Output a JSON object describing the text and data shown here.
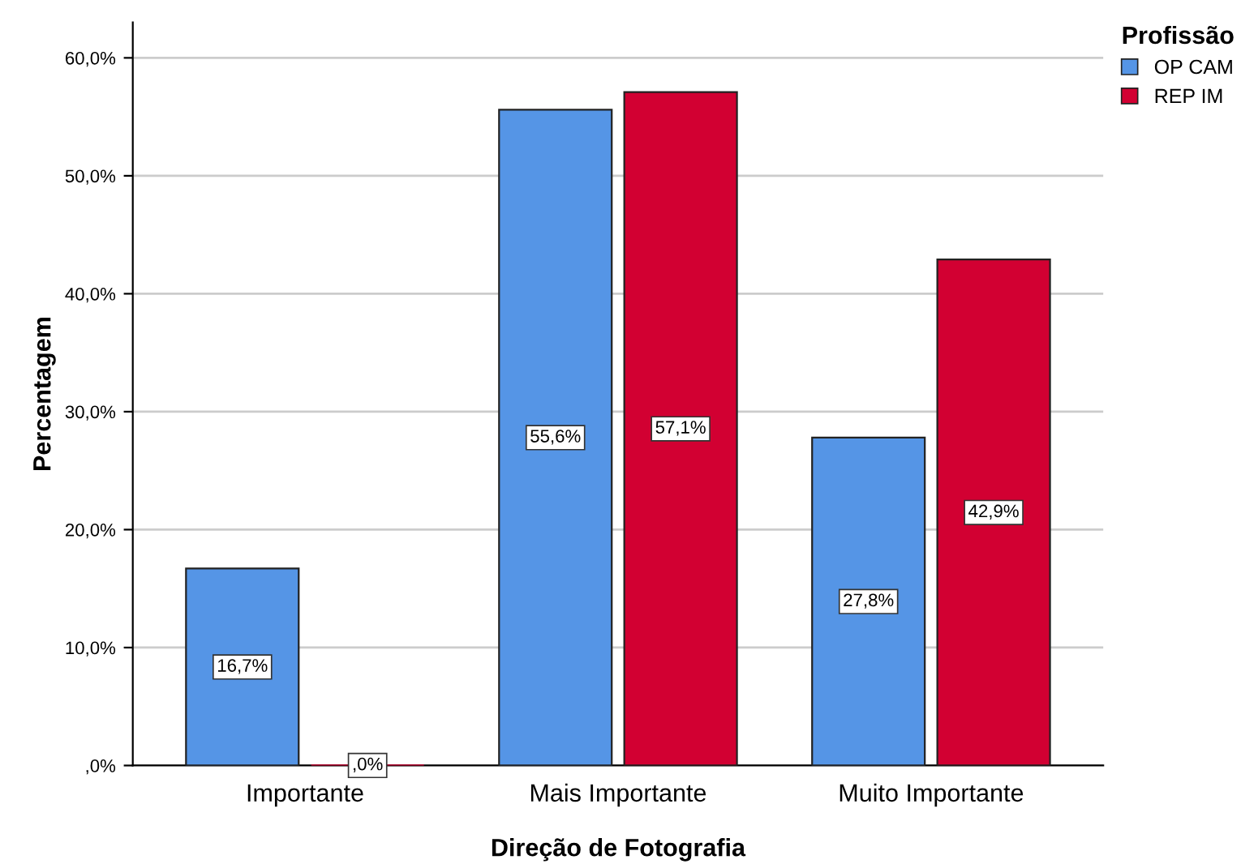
{
  "chart_data": {
    "type": "bar",
    "xlabel": "Direção de Fotografia",
    "ylabel": "Percentagem",
    "legend_title": "Profissão",
    "legend": "top right",
    "grid": "y",
    "categories": [
      "Importante",
      "Mais Importante",
      "Muito Importante"
    ],
    "series": [
      {
        "name": "OP CAM",
        "color": "#5595e6",
        "values": [
          16.7,
          55.6,
          27.8
        ],
        "value_labels": [
          "16,7%",
          "55,6%",
          "27,8%"
        ]
      },
      {
        "name": "REP IM",
        "color": "#d20032",
        "values": [
          0,
          57.1,
          42.9
        ],
        "value_labels": [
          ",0%",
          "57,1%",
          "42,9%"
        ]
      }
    ],
    "ylim": [
      0,
      63
    ],
    "yticks": [
      {
        "value": 0,
        "label": ",0%"
      },
      {
        "value": 10,
        "label": "10,0%"
      },
      {
        "value": 20,
        "label": "20,0%"
      },
      {
        "value": 30,
        "label": "30,0%"
      },
      {
        "value": 40,
        "label": "40,0%"
      },
      {
        "value": 50,
        "label": "50,0%"
      },
      {
        "value": 60,
        "label": "60,0%"
      }
    ]
  }
}
